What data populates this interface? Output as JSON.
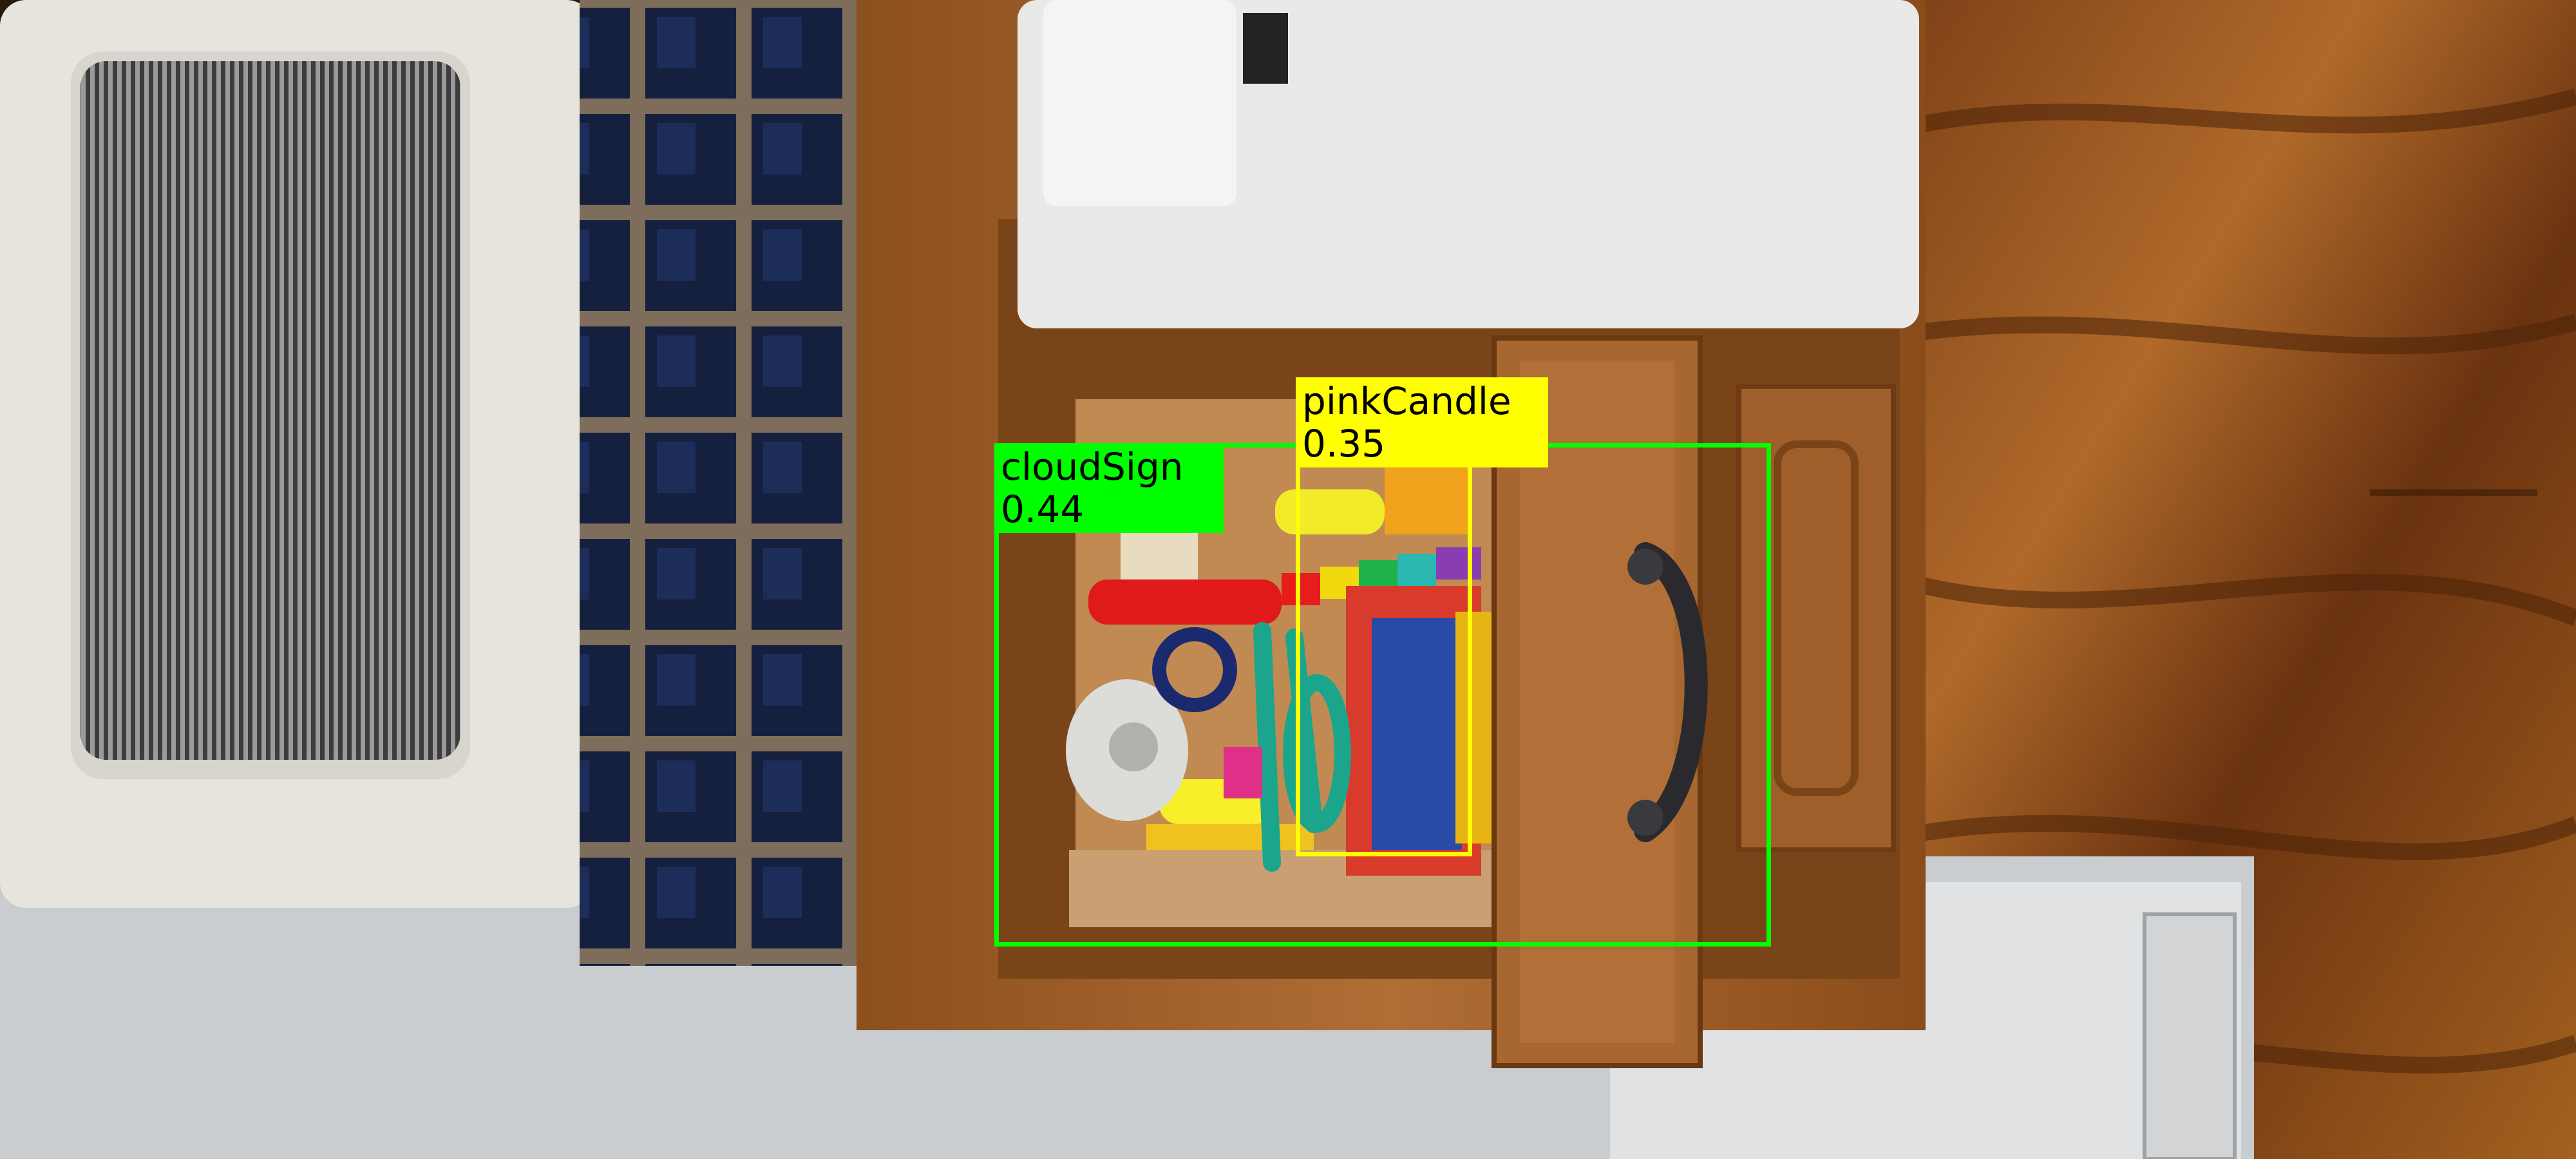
{
  "detections": [
    {
      "label": "cloudSign",
      "score": "0.44",
      "color": "#00ff00"
    },
    {
      "label": "pinkCandle",
      "score": "0.35",
      "color": "#ffff00"
    }
  ],
  "colors": {
    "wood_floor": "#8a4b1c",
    "cabinet_wood": "#a9642c",
    "microwave": "#e6e4dc",
    "tile": "#16254a",
    "countertop": "#c9cdd0"
  }
}
